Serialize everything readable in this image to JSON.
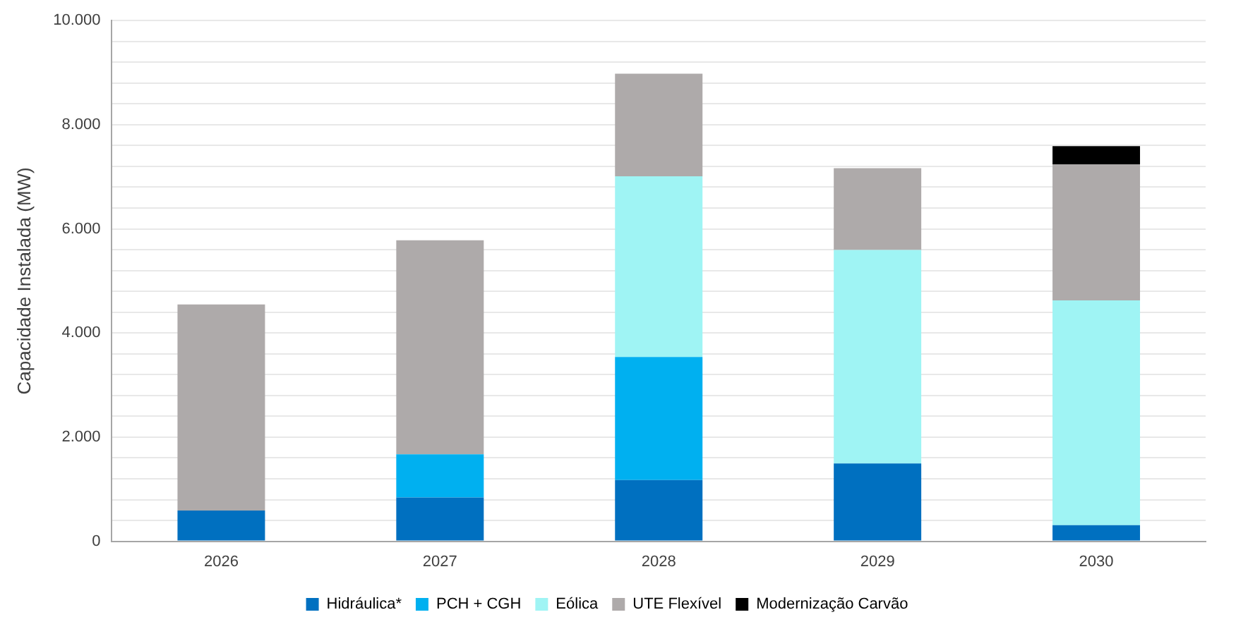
{
  "chart_data": {
    "type": "bar",
    "stacked": true,
    "ylabel": "Capacidade Instalada (MW)",
    "categories": [
      "2026",
      "2027",
      "2028",
      "2029",
      "2030"
    ],
    "series": [
      {
        "name": "Hidráulica*",
        "color": "#0070c0",
        "values": [
          590,
          840,
          1175,
          1495,
          310
        ]
      },
      {
        "name": "PCH + CGH",
        "color": "#00b0f0",
        "values": [
          0,
          830,
          2365,
          0,
          0
        ]
      },
      {
        "name": "Eólica",
        "color": "#9ff4f4",
        "values": [
          0,
          0,
          3470,
          4100,
          4315
        ]
      },
      {
        "name": "UTE Flexível",
        "color": "#aeaaaa",
        "values": [
          3960,
          4110,
          1970,
          1570,
          2615
        ]
      },
      {
        "name": "Modernização Carvão",
        "color": "#000000",
        "values": [
          0,
          0,
          0,
          0,
          350
        ]
      }
    ],
    "ylim": [
      0,
      10000
    ],
    "yticks": [
      {
        "value": 0,
        "label": "0"
      },
      {
        "value": 400,
        "label": null
      },
      {
        "value": 800,
        "label": null
      },
      {
        "value": 1200,
        "label": null
      },
      {
        "value": 1600,
        "label": null
      },
      {
        "value": 2000,
        "label": "2.000"
      },
      {
        "value": 2400,
        "label": null
      },
      {
        "value": 2800,
        "label": null
      },
      {
        "value": 3200,
        "label": null
      },
      {
        "value": 3600,
        "label": null
      },
      {
        "value": 4000,
        "label": "4.000"
      },
      {
        "value": 4400,
        "label": null
      },
      {
        "value": 4800,
        "label": null
      },
      {
        "value": 5200,
        "label": null
      },
      {
        "value": 5600,
        "label": null
      },
      {
        "value": 6000,
        "label": "6.000"
      },
      {
        "value": 6400,
        "label": null
      },
      {
        "value": 6800,
        "label": null
      },
      {
        "value": 7200,
        "label": null
      },
      {
        "value": 7600,
        "label": null
      },
      {
        "value": 8000,
        "label": "8.000"
      },
      {
        "value": 8400,
        "label": null
      },
      {
        "value": 8800,
        "label": null
      },
      {
        "value": 9200,
        "label": null
      },
      {
        "value": 9600,
        "label": null
      },
      {
        "value": 10000,
        "label": "10.000"
      }
    ],
    "grid": "y",
    "legend": "bottom"
  }
}
